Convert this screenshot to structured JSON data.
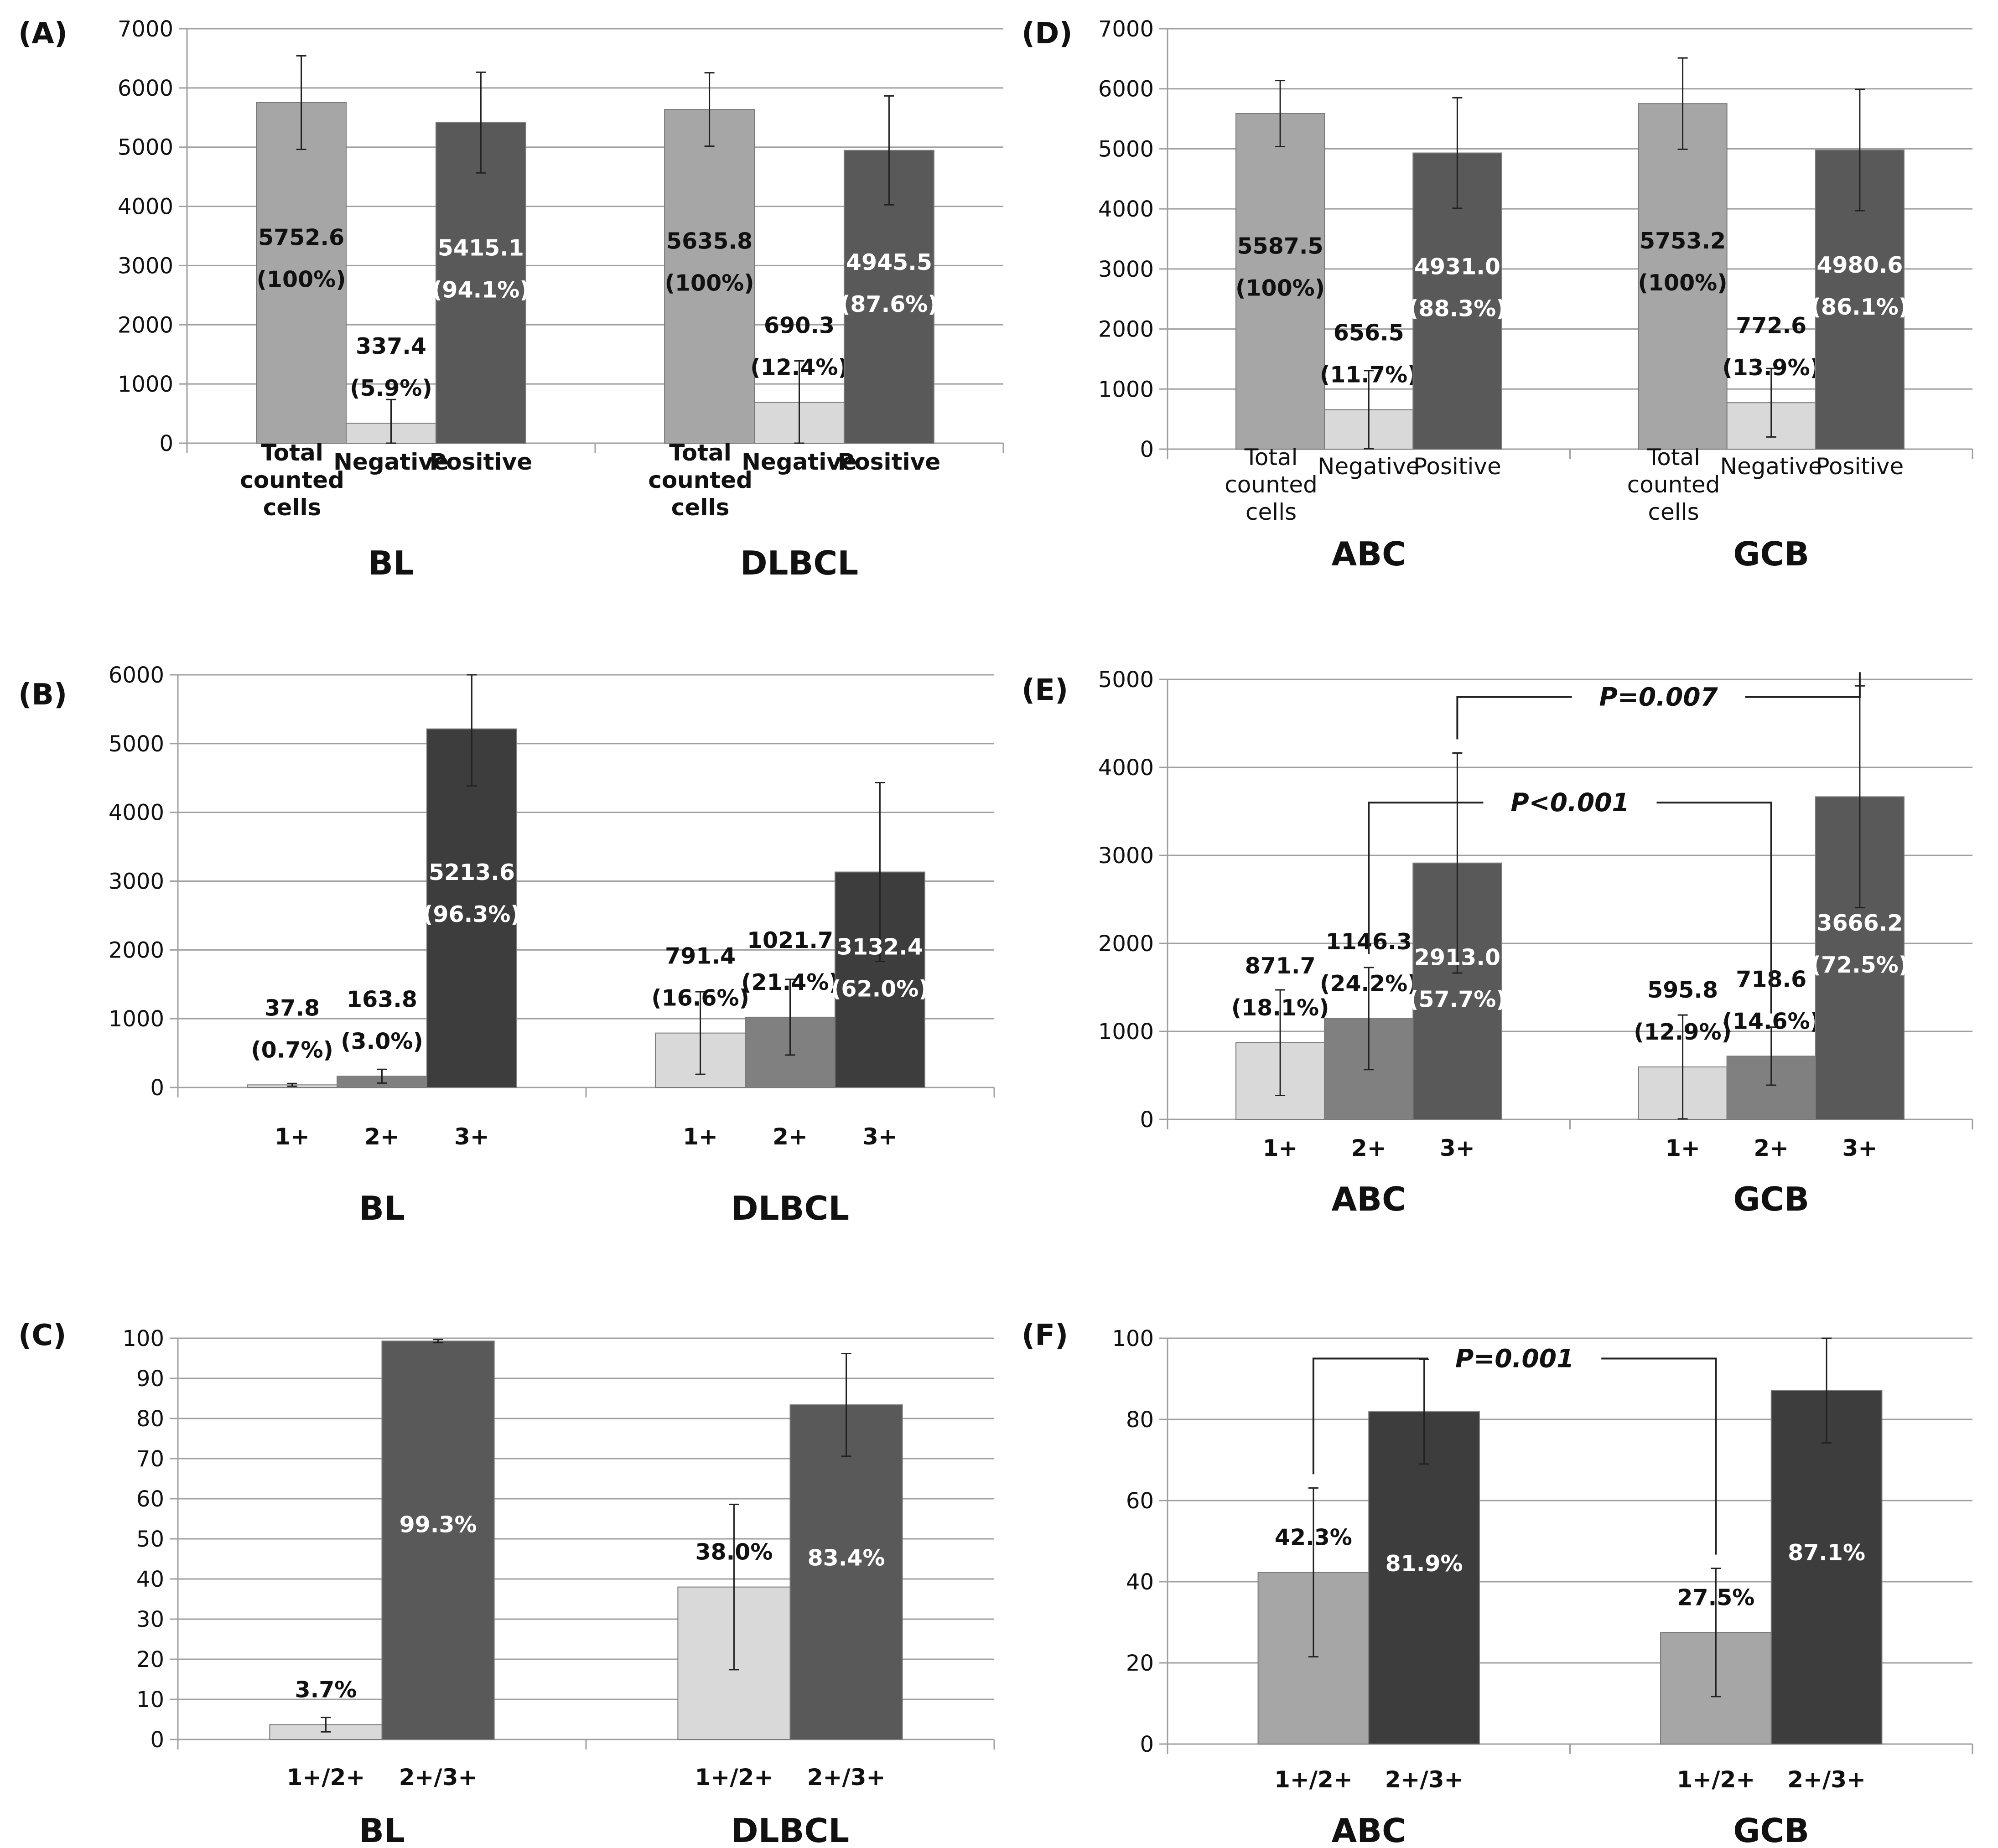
{
  "colors": {
    "gray_very_light": "#d9d9d9",
    "gray_light": "#a6a6a6",
    "gray_mid": "#808080",
    "gray_dark": "#595959",
    "gray_darkest": "#3d3d3d",
    "grid": "#a0a0a0",
    "text_dark": "#111111",
    "text_light": "#ffffff"
  },
  "chart_data": [
    {
      "panel": "(A)",
      "type": "bar",
      "ylim": [
        0,
        7000
      ],
      "yticks": [
        0,
        1000,
        2000,
        3000,
        4000,
        5000,
        6000,
        7000
      ],
      "grid": true,
      "groups": [
        {
          "name": "BL",
          "bars": [
            {
              "category": "Total counted cells",
              "value": 5752.6,
              "err": 790,
              "color": "gray_light",
              "label": [
                "5752.6",
                "(100%)"
              ],
              "label_color": "text_dark",
              "label_pos": "inside"
            },
            {
              "category": "Negative",
              "value": 337.4,
              "err": 400,
              "color": "gray_very_light",
              "label": [
                "337.4",
                "(5.9%)"
              ],
              "label_color": "text_dark",
              "label_pos": "above"
            },
            {
              "category": "Positive",
              "value": 5415.1,
              "err": 850,
              "color": "gray_dark",
              "label": [
                "5415.1",
                "(94.1%)"
              ],
              "label_color": "text_light",
              "label_pos": "inside"
            }
          ]
        },
        {
          "name": "DLBCL",
          "bars": [
            {
              "category": "Total counted cells",
              "value": 5635.8,
              "err": 620,
              "color": "gray_light",
              "label": [
                "5635.8",
                "(100%)"
              ],
              "label_color": "text_dark",
              "label_pos": "inside"
            },
            {
              "category": "Negative",
              "value": 690.3,
              "err": 700,
              "color": "gray_very_light",
              "label": [
                "690.3",
                "(12.4%)"
              ],
              "label_color": "text_dark",
              "label_pos": "above"
            },
            {
              "category": "Positive",
              "value": 4945.5,
              "err": 920,
              "color": "gray_dark",
              "label": [
                "4945.5",
                "(87.6%)"
              ],
              "label_color": "text_light",
              "label_pos": "inside"
            }
          ]
        }
      ],
      "category_style": "bold",
      "annotations": []
    },
    {
      "panel": "(B)",
      "type": "bar",
      "ylim": [
        0,
        6000
      ],
      "yticks": [
        0,
        1000,
        2000,
        3000,
        4000,
        5000,
        6000
      ],
      "grid": true,
      "groups": [
        {
          "name": "BL",
          "bars": [
            {
              "category": "1+",
              "value": 37.8,
              "err": 20,
              "color": "gray_very_light",
              "label": [
                "37.8",
                "(0.7%)"
              ],
              "label_color": "text_dark",
              "label_pos": "above"
            },
            {
              "category": "2+",
              "value": 163.8,
              "err": 100,
              "color": "gray_mid",
              "label": [
                "163.8",
                "(3.0%)"
              ],
              "label_color": "text_dark",
              "label_pos": "above"
            },
            {
              "category": "3+",
              "value": 5213.6,
              "err": 830,
              "color": "gray_darkest",
              "label": [
                "5213.6",
                "(96.3%)"
              ],
              "label_color": "text_light",
              "label_pos": "inside"
            }
          ]
        },
        {
          "name": "DLBCL",
          "bars": [
            {
              "category": "1+",
              "value": 791.4,
              "err": 600,
              "color": "gray_very_light",
              "label": [
                "791.4",
                "(16.6%)"
              ],
              "label_color": "text_dark",
              "label_pos": "above"
            },
            {
              "category": "2+",
              "value": 1021.7,
              "err": 550,
              "color": "gray_mid",
              "label": [
                "1021.7",
                "(21.4%)"
              ],
              "label_color": "text_dark",
              "label_pos": "above"
            },
            {
              "category": "3+",
              "value": 3132.4,
              "err": 1300,
              "color": "gray_darkest",
              "label": [
                "3132.4",
                "(62.0%)"
              ],
              "label_color": "text_light",
              "label_pos": "inside"
            }
          ]
        }
      ],
      "category_style": "bold",
      "annotations": []
    },
    {
      "panel": "(C)",
      "type": "bar",
      "ylim": [
        0,
        100
      ],
      "yticks": [
        0,
        10,
        20,
        30,
        40,
        50,
        60,
        70,
        80,
        90,
        100
      ],
      "grid": true,
      "groups": [
        {
          "name": "BL",
          "bars": [
            {
              "category": "1+/2+",
              "value": 3.7,
              "err": 1.8,
              "color": "gray_very_light",
              "label": [
                "3.7%"
              ],
              "label_color": "text_dark",
              "label_pos": "above"
            },
            {
              "category": "2+/3+",
              "value": 99.3,
              "err": 0.4,
              "color": "gray_dark",
              "label": [
                "99.3%"
              ],
              "label_color": "text_light",
              "label_pos": "inside"
            }
          ]
        },
        {
          "name": "DLBCL",
          "bars": [
            {
              "category": "1+/2+",
              "value": 38.0,
              "err": 20.6,
              "color": "gray_very_light",
              "label": [
                "38.0%"
              ],
              "label_color": "text_dark",
              "label_pos": "above"
            },
            {
              "category": "2+/3+",
              "value": 83.4,
              "err": 12.8,
              "color": "gray_dark",
              "label": [
                "83.4%"
              ],
              "label_color": "text_light",
              "label_pos": "inside"
            }
          ]
        }
      ],
      "category_style": "bold",
      "annotations": []
    },
    {
      "panel": "(D)",
      "type": "bar",
      "ylim": [
        0,
        7000
      ],
      "yticks": [
        0,
        1000,
        2000,
        3000,
        4000,
        5000,
        6000,
        7000
      ],
      "grid": true,
      "groups": [
        {
          "name": "ABC",
          "bars": [
            {
              "category": "Total counted cells",
              "value": 5587.5,
              "err": 550,
              "color": "gray_light",
              "label": [
                "5587.5",
                "(100%)"
              ],
              "label_color": "text_dark",
              "label_pos": "inside"
            },
            {
              "category": "Negative",
              "value": 656.5,
              "err": 650,
              "color": "gray_very_light",
              "label": [
                "656.5",
                "(11.7%)"
              ],
              "label_color": "text_dark",
              "label_pos": "above"
            },
            {
              "category": "Positive",
              "value": 4931.0,
              "err": 920,
              "color": "gray_dark",
              "label": [
                "4931.0",
                "(88.3%)"
              ],
              "label_color": "text_light",
              "label_pos": "inside"
            }
          ]
        },
        {
          "name": "GCB",
          "bars": [
            {
              "category": "Total counted cells",
              "value": 5753.2,
              "err": 760,
              "color": "gray_light",
              "label": [
                "5753.2",
                "(100%)"
              ],
              "label_color": "text_dark",
              "label_pos": "inside"
            },
            {
              "category": "Negative",
              "value": 772.6,
              "err": 570,
              "color": "gray_very_light",
              "label": [
                "772.6",
                "(13.9%)"
              ],
              "label_color": "text_dark",
              "label_pos": "above"
            },
            {
              "category": "Positive",
              "value": 4980.6,
              "err": 1010,
              "color": "gray_dark",
              "label": [
                "4980.6",
                "(86.1%)"
              ],
              "label_color": "text_light",
              "label_pos": "inside"
            }
          ]
        }
      ],
      "category_style": "normal",
      "annotations": []
    },
    {
      "panel": "(E)",
      "type": "bar",
      "ylim": [
        0,
        5000
      ],
      "yticks": [
        0,
        1000,
        2000,
        3000,
        4000,
        5000
      ],
      "grid": true,
      "groups": [
        {
          "name": "ABC",
          "bars": [
            {
              "category": "1+",
              "value": 871.7,
              "err": 600,
              "color": "gray_very_light",
              "label": [
                "871.7",
                "(18.1%)"
              ],
              "label_color": "text_dark",
              "label_pos": "above"
            },
            {
              "category": "2+",
              "value": 1146.3,
              "err": 580,
              "color": "gray_mid",
              "label": [
                "1146.3",
                "(24.2%)"
              ],
              "label_color": "text_dark",
              "label_pos": "above"
            },
            {
              "category": "3+",
              "value": 2913.0,
              "err": 1250,
              "color": "gray_dark",
              "label": [
                "2913.0",
                "(57.7%)"
              ],
              "label_color": "text_light",
              "label_pos": "inside"
            }
          ]
        },
        {
          "name": "GCB",
          "bars": [
            {
              "category": "1+",
              "value": 595.8,
              "err": 590,
              "color": "gray_very_light",
              "label": [
                "595.8",
                "(12.9%)"
              ],
              "label_color": "text_dark",
              "label_pos": "above"
            },
            {
              "category": "2+",
              "value": 718.6,
              "err": 330,
              "color": "gray_mid",
              "label": [
                "718.6",
                "(14.6%)"
              ],
              "label_color": "text_dark",
              "label_pos": "above"
            },
            {
              "category": "3+",
              "value": 3666.2,
              "err": 1260,
              "color": "gray_dark",
              "label": [
                "3666.2",
                "(72.5%)"
              ],
              "label_color": "text_light",
              "label_pos": "inside"
            }
          ]
        }
      ],
      "category_style": "bold",
      "annotations": [
        {
          "text": "P=0.007",
          "from": [
            0,
            2
          ],
          "to": [
            1,
            2
          ],
          "level": 4800
        },
        {
          "text": "P<0.001",
          "from": [
            0,
            1
          ],
          "to": [
            1,
            1
          ],
          "level": 3600
        }
      ]
    },
    {
      "panel": "(F)",
      "type": "bar",
      "ylim": [
        0,
        100
      ],
      "yticks": [
        0,
        20,
        40,
        60,
        80,
        100
      ],
      "grid": true,
      "groups": [
        {
          "name": "ABC",
          "bars": [
            {
              "category": "1+/2+",
              "value": 42.3,
              "err": 20.8,
              "color": "gray_light",
              "label": [
                "42.3%"
              ],
              "label_color": "text_dark",
              "label_pos": "above"
            },
            {
              "category": "2+/3+",
              "value": 81.9,
              "err": 12.9,
              "color": "gray_darkest",
              "label": [
                "81.9%"
              ],
              "label_color": "text_light",
              "label_pos": "inside"
            }
          ]
        },
        {
          "name": "GCB",
          "bars": [
            {
              "category": "1+/2+",
              "value": 27.5,
              "err": 15.8,
              "color": "gray_light",
              "label": [
                "27.5%"
              ],
              "label_color": "text_dark",
              "label_pos": "above"
            },
            {
              "category": "2+/3+",
              "value": 87.1,
              "err": 12.9,
              "color": "gray_darkest",
              "label": [
                "87.1%"
              ],
              "label_color": "text_light",
              "label_pos": "inside"
            }
          ]
        }
      ],
      "category_style": "bold",
      "annotations": [
        {
          "text": "P=0.001",
          "from": [
            0,
            0
          ],
          "to": [
            1,
            0
          ],
          "level": 95
        }
      ]
    }
  ]
}
